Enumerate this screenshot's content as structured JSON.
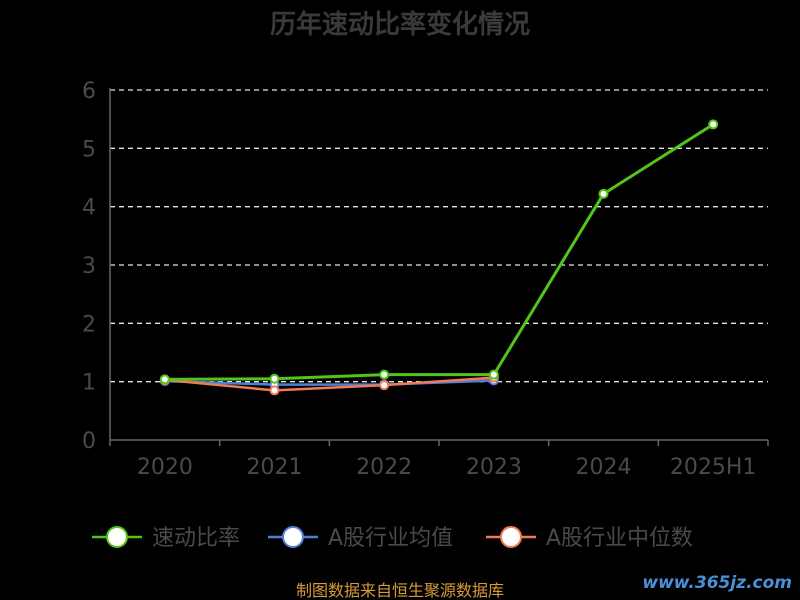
{
  "chart_data": {
    "type": "line",
    "title": "历年速动比率变化情况",
    "categories": [
      "2020",
      "2021",
      "2022",
      "2023",
      "2024",
      "2025H1"
    ],
    "y_ticks": [
      "0",
      "1",
      "2",
      "3",
      "4",
      "5",
      "6"
    ],
    "ylim": [
      0,
      6
    ],
    "grid": true,
    "legend_position": "bottom",
    "series": [
      {
        "name": "速动比率",
        "color": "#52c41a",
        "values": [
          1.04,
          1.05,
          1.12,
          1.12,
          4.22,
          5.41
        ]
      },
      {
        "name": "A股行业均值",
        "color": "#4e7fd6",
        "values": [
          1.01,
          0.95,
          0.95,
          1.02,
          null,
          null
        ]
      },
      {
        "name": "A股行业中位数",
        "color": "#f07c56",
        "values": [
          1.03,
          0.85,
          0.94,
          1.07,
          null,
          null
        ]
      }
    ]
  },
  "footer": {
    "source": "制图数据来自恒生聚源数据库",
    "watermark": "www.365jz.com"
  }
}
